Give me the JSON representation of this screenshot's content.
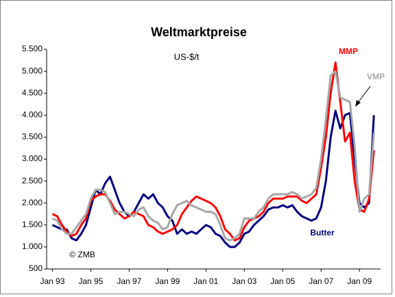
{
  "chart_data": {
    "type": "line",
    "title": "Weltmarktpreise",
    "subtitle": "US-$/t",
    "annotations": [
      "© ZMB"
    ],
    "x": [
      1993,
      1993.25,
      1993.5,
      1993.75,
      1994,
      1994.25,
      1994.5,
      1994.75,
      1995,
      1995.25,
      1995.5,
      1995.75,
      1996,
      1996.25,
      1996.5,
      1996.75,
      1997,
      1997.25,
      1997.5,
      1997.75,
      1998,
      1998.25,
      1998.5,
      1998.75,
      1999,
      1999.25,
      1999.5,
      1999.75,
      2000,
      2000.25,
      2000.5,
      2000.75,
      2001,
      2001.25,
      2001.5,
      2001.75,
      2002,
      2002.25,
      2002.5,
      2002.75,
      2003,
      2003.25,
      2003.5,
      2003.75,
      2004,
      2004.25,
      2004.5,
      2004.75,
      2005,
      2005.25,
      2005.5,
      2005.75,
      2006,
      2006.25,
      2006.5,
      2006.75,
      2007,
      2007.25,
      2007.5,
      2007.75,
      2008,
      2008.25,
      2008.5,
      2008.75,
      2009,
      2009.25,
      2009.5,
      2009.75
    ],
    "series": [
      {
        "name": "Butter",
        "color": "#000080",
        "values": [
          1500,
          1450,
          1400,
          1400,
          1200,
          1150,
          1300,
          1500,
          1900,
          2300,
          2200,
          2450,
          2600,
          2300,
          2000,
          1800,
          1700,
          1800,
          2000,
          2200,
          2100,
          2200,
          2000,
          1900,
          1700,
          1600,
          1300,
          1400,
          1300,
          1350,
          1300,
          1400,
          1500,
          1450,
          1300,
          1250,
          1100,
          1000,
          1000,
          1100,
          1300,
          1350,
          1500,
          1600,
          1700,
          1850,
          1900,
          1900,
          1950,
          1900,
          1950,
          1800,
          1700,
          1650,
          1600,
          1650,
          1900,
          2500,
          3500,
          4100,
          3700,
          4000,
          4050,
          3000,
          2000,
          1900,
          2000,
          4000
        ]
      },
      {
        "name": "MMP",
        "color": "#ff0000",
        "values": [
          1750,
          1700,
          1500,
          1350,
          1250,
          1300,
          1500,
          1650,
          2050,
          2150,
          2200,
          2200,
          2050,
          1850,
          1750,
          1650,
          1700,
          1800,
          1750,
          1700,
          1500,
          1450,
          1350,
          1300,
          1350,
          1400,
          1500,
          1750,
          1900,
          2050,
          2150,
          2100,
          2050,
          2000,
          1900,
          1700,
          1400,
          1300,
          1150,
          1200,
          1450,
          1600,
          1650,
          1700,
          1800,
          2000,
          2100,
          2100,
          2100,
          2150,
          2150,
          2150,
          2050,
          2000,
          2100,
          2200,
          2800,
          3500,
          4500,
          5200,
          4300,
          3400,
          3600,
          2500,
          1850,
          1800,
          2100,
          3200
        ]
      },
      {
        "name": "VMP",
        "color": "#a6a6a6",
        "values": [
          1650,
          1600,
          1400,
          1300,
          1300,
          1450,
          1600,
          1750,
          2100,
          2300,
          2300,
          2250,
          2000,
          1750,
          1800,
          1800,
          1750,
          1700,
          1850,
          1900,
          1700,
          1600,
          1550,
          1400,
          1450,
          1750,
          1950,
          2000,
          2050,
          1950,
          1900,
          1850,
          1800,
          1800,
          1750,
          1500,
          1200,
          1150,
          1200,
          1300,
          1650,
          1650,
          1650,
          1800,
          1900,
          2100,
          2200,
          2200,
          2200,
          2200,
          2250,
          2200,
          2100,
          2150,
          2200,
          2350,
          3000,
          3900,
          4900,
          5000,
          4400,
          4350,
          4300,
          3300,
          1800,
          2100,
          2200,
          3600
        ]
      }
    ],
    "xlim": [
      1992.7,
      2010.1
    ],
    "xticks": [
      {
        "value": 1993,
        "label": "Jan 93"
      },
      {
        "value": 1995,
        "label": "Jan 95"
      },
      {
        "value": 1997,
        "label": "Jan 97"
      },
      {
        "value": 1999,
        "label": "Jan 99"
      },
      {
        "value": 2001,
        "label": "Jan 01"
      },
      {
        "value": 2003,
        "label": "Jan 03"
      },
      {
        "value": 2005,
        "label": "Jan 05"
      },
      {
        "value": 2007,
        "label": "Jan 07"
      },
      {
        "value": 2009,
        "label": "Jan 09"
      }
    ],
    "ylim": [
      500,
      5500
    ],
    "yticks": [
      {
        "value": 500,
        "label": "500"
      },
      {
        "value": 1000,
        "label": "1.000"
      },
      {
        "value": 1500,
        "label": "1.500"
      },
      {
        "value": 2000,
        "label": "2.000"
      },
      {
        "value": 2500,
        "label": "2.500"
      },
      {
        "value": 3000,
        "label": "3.000"
      },
      {
        "value": 3500,
        "label": "3.500"
      },
      {
        "value": 4000,
        "label": "4.000"
      },
      {
        "value": 4500,
        "label": "4.500"
      },
      {
        "value": 5000,
        "label": "5.000"
      },
      {
        "value": 5500,
        "label": "5.500"
      }
    ],
    "grid": false
  }
}
